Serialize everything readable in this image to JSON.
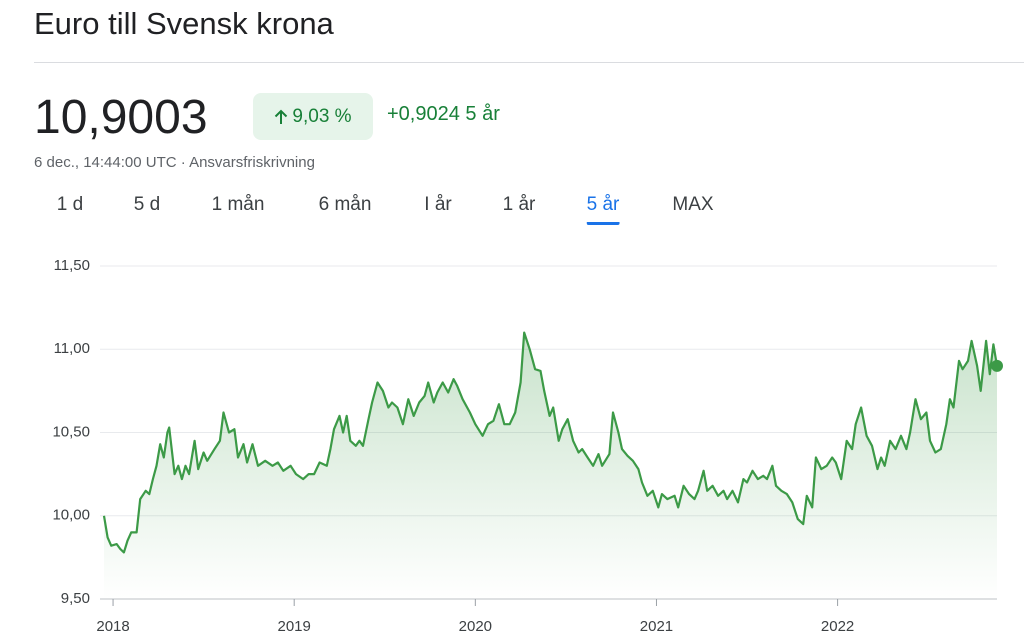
{
  "header": {
    "title": "Euro till Svensk krona"
  },
  "quote": {
    "price": "10,9003",
    "change_percent": "9,03 %",
    "change_absolute": "+0,9024",
    "period": "5 år",
    "timestamp": "6 dec., 14:44:00 UTC · Ansvarsfriskrivning"
  },
  "tabs": [
    "1 d",
    "5 d",
    "1 mån",
    "6 mån",
    "I år",
    "1 år",
    "5 år",
    "MAX"
  ],
  "active_tab": 6,
  "chart_data": {
    "type": "line",
    "color": "#3c9a47",
    "grid": true,
    "xlim": [
      2017.95,
      2022.88
    ],
    "xticks": [
      2018,
      2019,
      2020,
      2021,
      2022
    ],
    "ylim": [
      9.5,
      11.5
    ],
    "yticks": [
      {
        "value": 9.5,
        "label": "9,50"
      },
      {
        "value": 10,
        "label": "10,00"
      },
      {
        "value": 10.5,
        "label": "10,50"
      },
      {
        "value": 11,
        "label": "11,00"
      },
      {
        "value": 11.5,
        "label": "11,50"
      }
    ],
    "x": [
      2017.95,
      2017.97,
      2017.99,
      2018.02,
      2018.04,
      2018.06,
      2018.08,
      2018.1,
      2018.13,
      2018.15,
      2018.18,
      2018.2,
      2018.22,
      2018.24,
      2018.26,
      2018.28,
      2018.3,
      2018.31,
      2018.34,
      2018.36,
      2018.38,
      2018.4,
      2018.42,
      2018.45,
      2018.47,
      2018.5,
      2018.52,
      2018.56,
      2018.59,
      2018.61,
      2018.64,
      2018.67,
      2018.69,
      2018.72,
      2018.74,
      2018.77,
      2018.8,
      2018.84,
      2018.88,
      2018.91,
      2018.94,
      2018.98,
      2019.01,
      2019.05,
      2019.08,
      2019.11,
      2019.14,
      2019.18,
      2019.2,
      2019.22,
      2019.25,
      2019.27,
      2019.29,
      2019.31,
      2019.34,
      2019.36,
      2019.38,
      2019.41,
      2019.43,
      2019.46,
      2019.49,
      2019.52,
      2019.54,
      2019.57,
      2019.6,
      2019.63,
      2019.66,
      2019.69,
      2019.72,
      2019.74,
      2019.77,
      2019.79,
      2019.82,
      2019.85,
      2019.88,
      2019.9,
      2019.93,
      2019.97,
      2020.0,
      2020.04,
      2020.07,
      2020.1,
      2020.13,
      2020.16,
      2020.19,
      2020.22,
      2020.25,
      2020.27,
      2020.3,
      2020.33,
      2020.36,
      2020.38,
      2020.41,
      2020.43,
      2020.46,
      2020.48,
      2020.51,
      2020.54,
      2020.57,
      2020.59,
      2020.62,
      2020.65,
      2020.68,
      2020.7,
      2020.74,
      2020.76,
      2020.79,
      2020.81,
      2020.84,
      2020.87,
      2020.9,
      2020.92,
      2020.95,
      2020.98,
      2021.01,
      2021.03,
      2021.06,
      2021.1,
      2021.12,
      2021.15,
      2021.18,
      2021.21,
      2021.23,
      2021.26,
      2021.28,
      2021.31,
      2021.34,
      2021.37,
      2021.39,
      2021.42,
      2021.45,
      2021.48,
      2021.5,
      2021.53,
      2021.56,
      2021.59,
      2021.61,
      2021.64,
      2021.66,
      2021.69,
      2021.72,
      2021.75,
      2021.78,
      2021.81,
      2021.83,
      2021.86,
      2021.88,
      2021.91,
      2021.94,
      2021.97,
      2021.99,
      2022.02,
      2022.05,
      2022.08,
      2022.1,
      2022.13,
      2022.16,
      2022.19,
      2022.22,
      2022.24,
      2022.26,
      2022.29,
      2022.32,
      2022.35,
      2022.38,
      2022.4,
      2022.43,
      2022.46,
      2022.49,
      2022.51,
      2022.54,
      2022.57,
      2022.6,
      2022.62,
      2022.64,
      2022.67,
      2022.69,
      2022.72,
      2022.74,
      2022.77,
      2022.79,
      2022.82,
      2022.84,
      2022.86,
      2022.88
    ],
    "values": [
      10.0,
      9.87,
      9.82,
      9.83,
      9.8,
      9.78,
      9.85,
      9.9,
      9.9,
      10.1,
      10.15,
      10.13,
      10.22,
      10.3,
      10.43,
      10.35,
      10.5,
      10.53,
      10.25,
      10.3,
      10.22,
      10.3,
      10.25,
      10.45,
      10.28,
      10.38,
      10.33,
      10.4,
      10.45,
      10.62,
      10.5,
      10.52,
      10.35,
      10.43,
      10.32,
      10.43,
      10.3,
      10.33,
      10.3,
      10.32,
      10.27,
      10.3,
      10.25,
      10.22,
      10.25,
      10.25,
      10.32,
      10.3,
      10.4,
      10.52,
      10.6,
      10.5,
      10.6,
      10.45,
      10.42,
      10.45,
      10.42,
      10.58,
      10.68,
      10.8,
      10.75,
      10.65,
      10.68,
      10.65,
      10.55,
      10.7,
      10.6,
      10.68,
      10.72,
      10.8,
      10.68,
      10.74,
      10.8,
      10.74,
      10.82,
      10.78,
      10.7,
      10.62,
      10.55,
      10.48,
      10.55,
      10.57,
      10.67,
      10.55,
      10.55,
      10.62,
      10.8,
      11.1,
      11.0,
      10.88,
      10.87,
      10.75,
      10.6,
      10.65,
      10.45,
      10.52,
      10.58,
      10.45,
      10.38,
      10.4,
      10.35,
      10.3,
      10.37,
      10.3,
      10.37,
      10.62,
      10.5,
      10.4,
      10.36,
      10.33,
      10.28,
      10.2,
      10.12,
      10.15,
      10.05,
      10.13,
      10.1,
      10.12,
      10.05,
      10.18,
      10.13,
      10.1,
      10.15,
      10.27,
      10.15,
      10.18,
      10.12,
      10.15,
      10.1,
      10.15,
      10.08,
      10.22,
      10.2,
      10.27,
      10.22,
      10.24,
      10.22,
      10.3,
      10.18,
      10.15,
      10.13,
      10.08,
      9.98,
      9.95,
      10.12,
      10.05,
      10.35,
      10.28,
      10.3,
      10.35,
      10.32,
      10.22,
      10.45,
      10.4,
      10.55,
      10.65,
      10.48,
      10.42,
      10.28,
      10.35,
      10.3,
      10.45,
      10.4,
      10.48,
      10.4,
      10.5,
      10.7,
      10.58,
      10.62,
      10.45,
      10.38,
      10.4,
      10.55,
      10.7,
      10.65,
      10.93,
      10.88,
      10.93,
      11.05,
      10.9,
      10.75,
      11.05,
      10.85,
      11.03,
      10.9
    ]
  }
}
